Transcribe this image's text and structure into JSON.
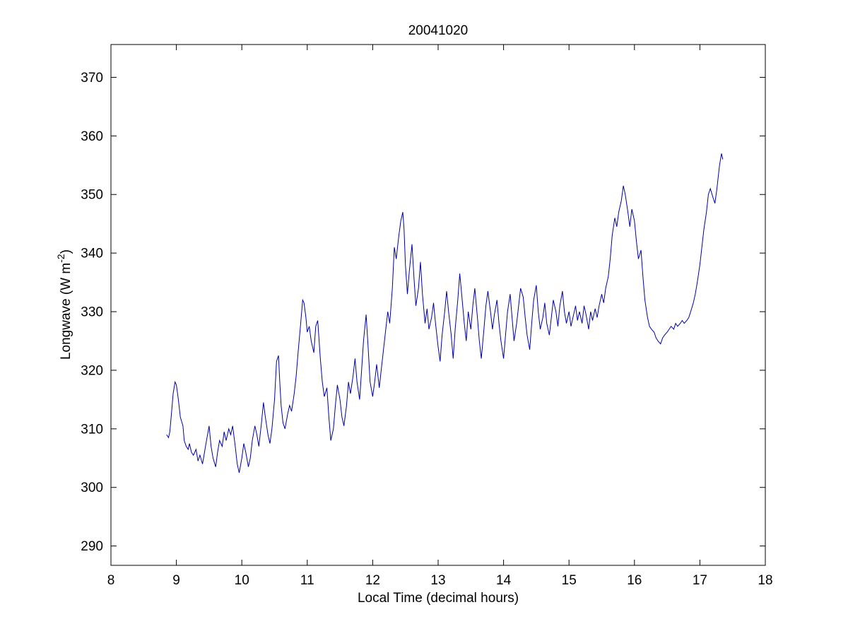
{
  "figure": {
    "background": "#ffffff",
    "ylabel_parts": {
      "pre": "Longwave (W m",
      "sup": "-2",
      "post": ")"
    }
  },
  "chart_data": {
    "type": "line",
    "title": "20041020",
    "xlabel": "Local Time (decimal hours)",
    "ylabel": "Longwave (W m^-2)",
    "xlim": [
      8,
      18
    ],
    "ylim": [
      286.7,
      375.6
    ],
    "xticks": [
      8,
      9,
      10,
      11,
      12,
      13,
      14,
      15,
      16,
      17,
      18
    ],
    "yticks": [
      290,
      300,
      310,
      320,
      330,
      340,
      350,
      360,
      370
    ],
    "grid": false,
    "legend": "none",
    "series": [
      {
        "name": "longwave",
        "color": "#0000AA",
        "points": [
          [
            8.85,
            309
          ],
          [
            8.88,
            308.5
          ],
          [
            8.9,
            309.5
          ],
          [
            8.92,
            312
          ],
          [
            8.95,
            316
          ],
          [
            8.98,
            318
          ],
          [
            9.0,
            317.5
          ],
          [
            9.03,
            315
          ],
          [
            9.06,
            312
          ],
          [
            9.1,
            310.5
          ],
          [
            9.12,
            308
          ],
          [
            9.15,
            307
          ],
          [
            9.18,
            306.5
          ],
          [
            9.2,
            307.5
          ],
          [
            9.23,
            306
          ],
          [
            9.26,
            305.5
          ],
          [
            9.3,
            306.5
          ],
          [
            9.33,
            304.5
          ],
          [
            9.36,
            305.5
          ],
          [
            9.4,
            304
          ],
          [
            9.43,
            306
          ],
          [
            9.46,
            308
          ],
          [
            9.5,
            310.5
          ],
          [
            9.53,
            307
          ],
          [
            9.56,
            305
          ],
          [
            9.6,
            303.5
          ],
          [
            9.63,
            306
          ],
          [
            9.66,
            308
          ],
          [
            9.7,
            307
          ],
          [
            9.73,
            309.5
          ],
          [
            9.76,
            308
          ],
          [
            9.8,
            310
          ],
          [
            9.83,
            309
          ],
          [
            9.86,
            310.5
          ],
          [
            9.9,
            307
          ],
          [
            9.93,
            304
          ],
          [
            9.96,
            302.5
          ],
          [
            10.0,
            305
          ],
          [
            10.03,
            307.5
          ],
          [
            10.06,
            306
          ],
          [
            10.1,
            303.5
          ],
          [
            10.13,
            305
          ],
          [
            10.16,
            308
          ],
          [
            10.2,
            310.5
          ],
          [
            10.23,
            309
          ],
          [
            10.26,
            307
          ],
          [
            10.3,
            311
          ],
          [
            10.33,
            314.5
          ],
          [
            10.36,
            312
          ],
          [
            10.4,
            309
          ],
          [
            10.43,
            307.5
          ],
          [
            10.46,
            310
          ],
          [
            10.5,
            315
          ],
          [
            10.53,
            321.5
          ],
          [
            10.56,
            322.5
          ],
          [
            10.58,
            318
          ],
          [
            10.6,
            314
          ],
          [
            10.63,
            311
          ],
          [
            10.66,
            310
          ],
          [
            10.7,
            312.5
          ],
          [
            10.73,
            314
          ],
          [
            10.76,
            313
          ],
          [
            10.8,
            316
          ],
          [
            10.83,
            319
          ],
          [
            10.86,
            323
          ],
          [
            10.9,
            328
          ],
          [
            10.93,
            332
          ],
          [
            10.95,
            331.5
          ],
          [
            10.98,
            329
          ],
          [
            11.0,
            326.5
          ],
          [
            11.03,
            327.5
          ],
          [
            11.06,
            325
          ],
          [
            11.1,
            323
          ],
          [
            11.13,
            327.5
          ],
          [
            11.16,
            328.5
          ],
          [
            11.2,
            322
          ],
          [
            11.23,
            318
          ],
          [
            11.26,
            315.5
          ],
          [
            11.3,
            317
          ],
          [
            11.33,
            312
          ],
          [
            11.36,
            308
          ],
          [
            11.4,
            310
          ],
          [
            11.43,
            314
          ],
          [
            11.46,
            317.5
          ],
          [
            11.5,
            315
          ],
          [
            11.53,
            312
          ],
          [
            11.56,
            310.5
          ],
          [
            11.6,
            314
          ],
          [
            11.63,
            318
          ],
          [
            11.66,
            316
          ],
          [
            11.7,
            319
          ],
          [
            11.73,
            322
          ],
          [
            11.76,
            318
          ],
          [
            11.8,
            315
          ],
          [
            11.83,
            320
          ],
          [
            11.86,
            325
          ],
          [
            11.9,
            329.5
          ],
          [
            11.93,
            324
          ],
          [
            11.96,
            318
          ],
          [
            12.0,
            315.5
          ],
          [
            12.03,
            318
          ],
          [
            12.06,
            321
          ],
          [
            12.1,
            317
          ],
          [
            12.13,
            320
          ],
          [
            12.16,
            323
          ],
          [
            12.2,
            327
          ],
          [
            12.23,
            330
          ],
          [
            12.26,
            328
          ],
          [
            12.3,
            334
          ],
          [
            12.33,
            341
          ],
          [
            12.36,
            339
          ],
          [
            12.4,
            343
          ],
          [
            12.43,
            345.5
          ],
          [
            12.46,
            347
          ],
          [
            12.48,
            344
          ],
          [
            12.5,
            338
          ],
          [
            12.53,
            333
          ],
          [
            12.56,
            337
          ],
          [
            12.6,
            341.5
          ],
          [
            12.63,
            336
          ],
          [
            12.66,
            331
          ],
          [
            12.7,
            334
          ],
          [
            12.73,
            338.5
          ],
          [
            12.76,
            333
          ],
          [
            12.8,
            328
          ],
          [
            12.83,
            330.5
          ],
          [
            12.86,
            327
          ],
          [
            12.9,
            329
          ],
          [
            12.93,
            331.5
          ],
          [
            12.96,
            328
          ],
          [
            13.0,
            324
          ],
          [
            13.03,
            321.5
          ],
          [
            13.06,
            326
          ],
          [
            13.1,
            330
          ],
          [
            13.13,
            333.5
          ],
          [
            13.16,
            330
          ],
          [
            13.2,
            326
          ],
          [
            13.23,
            322
          ],
          [
            13.26,
            327
          ],
          [
            13.3,
            332
          ],
          [
            13.33,
            336.5
          ],
          [
            13.36,
            333
          ],
          [
            13.4,
            328
          ],
          [
            13.43,
            325
          ],
          [
            13.46,
            330
          ],
          [
            13.5,
            327
          ],
          [
            13.53,
            331
          ],
          [
            13.56,
            334
          ],
          [
            13.6,
            329
          ],
          [
            13.63,
            325
          ],
          [
            13.66,
            322
          ],
          [
            13.7,
            327
          ],
          [
            13.73,
            331
          ],
          [
            13.76,
            333.5
          ],
          [
            13.8,
            330
          ],
          [
            13.83,
            327
          ],
          [
            13.86,
            329.5
          ],
          [
            13.9,
            332
          ],
          [
            13.93,
            328
          ],
          [
            13.96,
            325
          ],
          [
            14.0,
            322
          ],
          [
            14.03,
            326
          ],
          [
            14.06,
            330
          ],
          [
            14.1,
            333
          ],
          [
            14.13,
            329
          ],
          [
            14.16,
            325
          ],
          [
            14.2,
            328
          ],
          [
            14.23,
            331
          ],
          [
            14.26,
            334
          ],
          [
            14.3,
            332.5
          ],
          [
            14.33,
            329
          ],
          [
            14.36,
            326
          ],
          [
            14.4,
            323.5
          ],
          [
            14.43,
            328
          ],
          [
            14.46,
            332
          ],
          [
            14.5,
            334.5
          ],
          [
            14.53,
            330
          ],
          [
            14.56,
            327
          ],
          [
            14.6,
            329
          ],
          [
            14.63,
            331.5
          ],
          [
            14.66,
            328
          ],
          [
            14.7,
            326
          ],
          [
            14.73,
            329
          ],
          [
            14.76,
            332
          ],
          [
            14.8,
            330
          ],
          [
            14.83,
            327.5
          ],
          [
            14.86,
            331
          ],
          [
            14.9,
            333.5
          ],
          [
            14.93,
            330
          ],
          [
            14.96,
            328
          ],
          [
            15.0,
            330
          ],
          [
            15.03,
            327.5
          ],
          [
            15.06,
            329
          ],
          [
            15.1,
            331
          ],
          [
            15.13,
            328.5
          ],
          [
            15.16,
            330
          ],
          [
            15.2,
            328
          ],
          [
            15.23,
            331
          ],
          [
            15.26,
            329.5
          ],
          [
            15.3,
            327
          ],
          [
            15.33,
            330
          ],
          [
            15.36,
            328.5
          ],
          [
            15.4,
            330.5
          ],
          [
            15.43,
            329
          ],
          [
            15.46,
            331
          ],
          [
            15.5,
            333
          ],
          [
            15.53,
            331.5
          ],
          [
            15.56,
            334
          ],
          [
            15.6,
            336
          ],
          [
            15.63,
            339
          ],
          [
            15.66,
            343
          ],
          [
            15.7,
            346
          ],
          [
            15.73,
            344.5
          ],
          [
            15.76,
            347
          ],
          [
            15.8,
            349
          ],
          [
            15.83,
            351.5
          ],
          [
            15.86,
            350
          ],
          [
            15.9,
            347
          ],
          [
            15.93,
            344.5
          ],
          [
            15.96,
            347.5
          ],
          [
            16.0,
            345.5
          ],
          [
            16.03,
            342
          ],
          [
            16.06,
            339
          ],
          [
            16.1,
            340.5
          ],
          [
            16.13,
            336
          ],
          [
            16.16,
            332
          ],
          [
            16.2,
            329
          ],
          [
            16.23,
            327.5
          ],
          [
            16.26,
            327
          ],
          [
            16.3,
            326.5
          ],
          [
            16.33,
            325.5
          ],
          [
            16.36,
            325
          ],
          [
            16.4,
            324.5
          ],
          [
            16.43,
            325.5
          ],
          [
            16.46,
            326
          ],
          [
            16.5,
            326.5
          ],
          [
            16.53,
            327
          ],
          [
            16.56,
            327.5
          ],
          [
            16.6,
            327
          ],
          [
            16.63,
            328
          ],
          [
            16.66,
            327.5
          ],
          [
            16.7,
            328
          ],
          [
            16.73,
            328.5
          ],
          [
            16.76,
            328
          ],
          [
            16.8,
            328.5
          ],
          [
            16.83,
            329
          ],
          [
            16.86,
            330
          ],
          [
            16.9,
            331.5
          ],
          [
            16.93,
            333
          ],
          [
            16.96,
            335
          ],
          [
            17.0,
            338
          ],
          [
            17.03,
            341
          ],
          [
            17.06,
            344
          ],
          [
            17.1,
            347
          ],
          [
            17.13,
            350
          ],
          [
            17.16,
            351
          ],
          [
            17.2,
            349.5
          ],
          [
            17.23,
            348.5
          ],
          [
            17.26,
            351
          ],
          [
            17.3,
            355
          ],
          [
            17.33,
            357
          ],
          [
            17.35,
            356
          ]
        ]
      }
    ]
  }
}
